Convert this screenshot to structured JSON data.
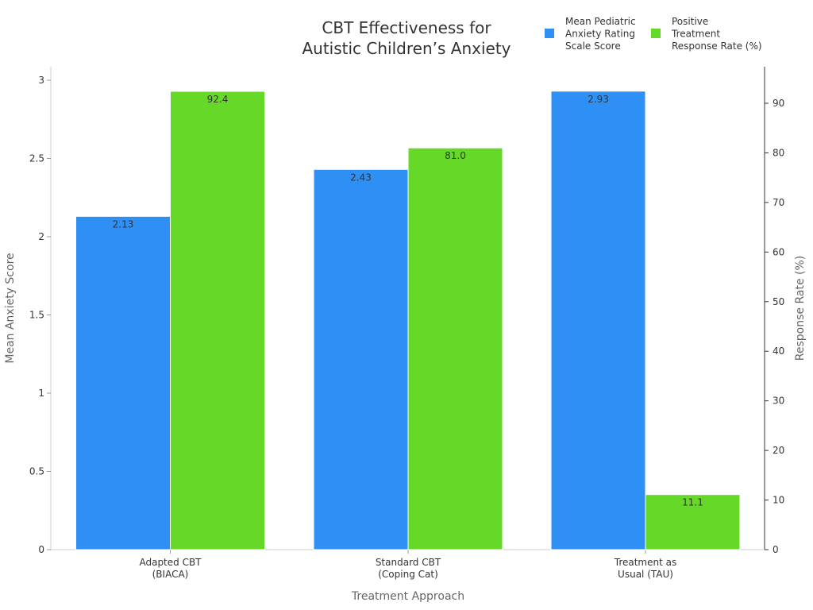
{
  "chart_data": {
    "type": "bar",
    "title": [
      "CBT Effectiveness for",
      "Autistic Children’s Anxiety"
    ],
    "categories": [
      [
        "Adapted CBT",
        "(BIACA)"
      ],
      [
        "Standard CBT",
        "(Coping Cat)"
      ],
      [
        "Treatment as",
        "Usual (TAU)"
      ]
    ],
    "xlabel": "Treatment Approach",
    "ylabel_left": "Mean Anxiety Score",
    "ylabel_right": "Response Rate (%)",
    "y_left": {
      "min": 0,
      "max": 3,
      "ticks": [
        0,
        0.5,
        1,
        1.5,
        2,
        2.5,
        3
      ]
    },
    "y_right": {
      "min": 0,
      "max": 90,
      "ticks": [
        0,
        10,
        20,
        30,
        40,
        50,
        60,
        70,
        80,
        90
      ]
    },
    "series": [
      {
        "name": [
          "Mean Pediatric",
          "Anxiety Rating",
          "Scale Score"
        ],
        "axis": "left",
        "color": "#2e90f5",
        "values": [
          2.13,
          2.43,
          2.93
        ],
        "labels": [
          "2.13",
          "2.43",
          "2.93"
        ]
      },
      {
        "name": [
          "Positive",
          "Treatment",
          "Response Rate (%)"
        ],
        "axis": "right",
        "color": "#66d928",
        "values": [
          92.4,
          81.0,
          11.1
        ],
        "labels": [
          "92.4",
          "81.0",
          "11.1"
        ]
      }
    ],
    "legend_position": "top-right",
    "grid": false
  }
}
